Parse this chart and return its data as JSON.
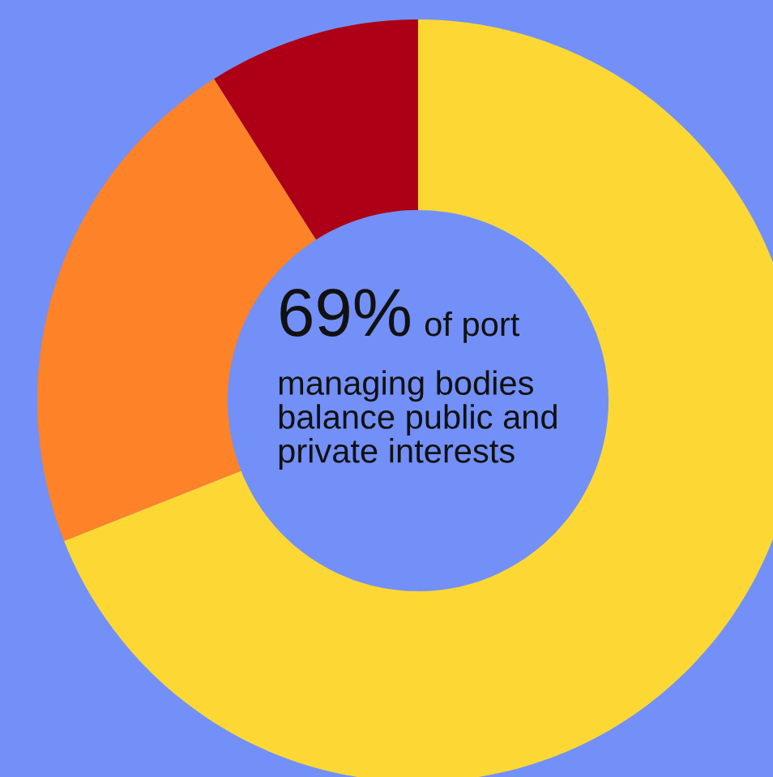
{
  "chart_data": {
    "type": "donut",
    "categories": [
      null,
      null,
      null
    ],
    "values": [
      69,
      22,
      9
    ],
    "colors": [
      "#fdd835",
      "#fd8228",
      "#ad0016"
    ],
    "annotations": [
      "69%",
      "of port",
      "managing bodies\nbalance public and\nprivate interests"
    ]
  }
}
